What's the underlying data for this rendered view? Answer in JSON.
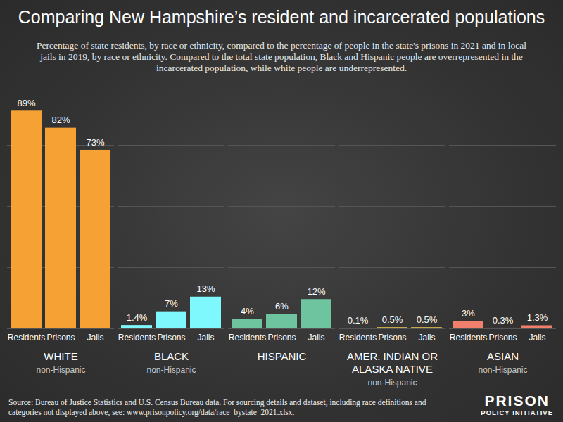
{
  "chart_data": {
    "type": "bar",
    "title": "Comparing New Hampshire’s resident and incarcerated populations",
    "subtitle": "Percentage of state residents, by race or ethnicity, compared to the percentage of people in the state's prisons in 2021 and in local jails in 2019, by race or ethnicity. Compared to the total state population, Black and Hispanic people are overrepresented in the incarcerated population, while white people are underrepresented.",
    "source": "Source: Bureau of Justice Statistics and U.S. Census Bureau data. For sourcing details and dataset, including race definitions and categories not displayed above, see: www.prisonpolicy.org/data/race_bystate_2021.xlsx.",
    "logo": [
      "PRISON",
      "POLICY INITIATIVE"
    ],
    "categories": [
      "Residents",
      "Prisons",
      "Jails"
    ],
    "series": [
      {
        "name": "WHITE",
        "sublabel": "non-Hispanic",
        "color": "#f5a133",
        "values": [
          89,
          82,
          73
        ],
        "value_labels": [
          "89%",
          "82%",
          "73%"
        ]
      },
      {
        "name": "BLACK",
        "sublabel": "non-Hispanic",
        "color": "#7ef7fd",
        "values": [
          1.4,
          7,
          13
        ],
        "value_labels": [
          "1.4%",
          "7%",
          "13%"
        ]
      },
      {
        "name": "HISPANIC",
        "color": "#6fc4a0",
        "values": [
          4,
          6,
          12
        ],
        "value_labels": [
          "4%",
          "6%",
          "12%"
        ]
      },
      {
        "name": "AMER. INDIAN OR ALASKA NATIVE",
        "sublabel": "non-Hispanic",
        "color": "#f2d154",
        "values": [
          0.1,
          0.5,
          0.5
        ],
        "value_labels": [
          "0.1%",
          "0.5%",
          "0.5%"
        ]
      },
      {
        "name": "ASIAN",
        "sublabel": "non-Hispanic",
        "color": "#f0806c",
        "values": [
          3,
          0.3,
          1.3
        ],
        "value_labels": [
          "3%",
          "0.3%",
          "1.3%"
        ]
      }
    ],
    "ylim": [
      0,
      100
    ],
    "yticks": [
      0,
      25,
      50,
      75,
      100
    ],
    "grid": true,
    "data_labels": true,
    "tick_labels": "x"
  }
}
